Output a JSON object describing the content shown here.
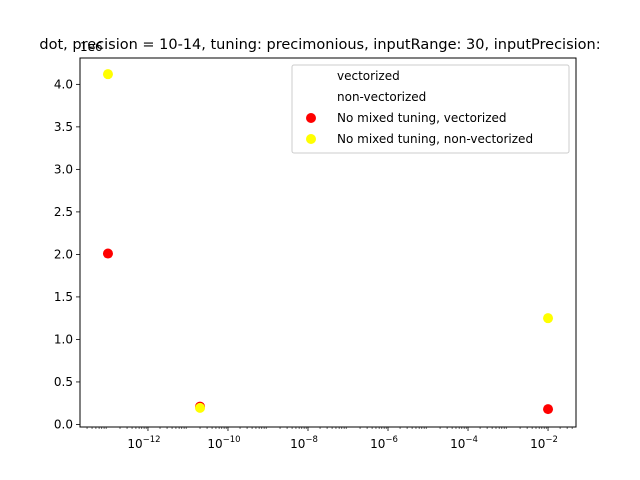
{
  "chart_data": {
    "type": "scatter",
    "title": "dot, precision = 10-14, tuning: precimonious, inputRange: 30, inputPrecision:",
    "xlabel": "",
    "ylabel": "",
    "x_scale": "log",
    "xlim": [
      2e-14,
      0.05
    ],
    "ylim": [
      -30000,
      4310000
    ],
    "y_offset_label": "1e6",
    "x_ticks": [
      {
        "value": 1e-12,
        "base": "10",
        "exp": "−12"
      },
      {
        "value": 1e-10,
        "base": "10",
        "exp": "−10"
      },
      {
        "value": 1e-08,
        "base": "10",
        "exp": "−8"
      },
      {
        "value": 1e-06,
        "base": "10",
        "exp": "−6"
      },
      {
        "value": 0.0001,
        "base": "10",
        "exp": "−4"
      },
      {
        "value": 0.01,
        "base": "10",
        "exp": "−2"
      }
    ],
    "y_ticks": [
      {
        "value": 0,
        "label": "0.0"
      },
      {
        "value": 500000,
        "label": "0.5"
      },
      {
        "value": 1000000,
        "label": "1.0"
      },
      {
        "value": 1500000,
        "label": "1.5"
      },
      {
        "value": 2000000,
        "label": "2.0"
      },
      {
        "value": 2500000,
        "label": "2.5"
      },
      {
        "value": 3000000,
        "label": "3.0"
      },
      {
        "value": 3500000,
        "label": "3.5"
      },
      {
        "value": 4000000,
        "label": "4.0"
      }
    ],
    "legend": {
      "placement": "upper-right",
      "entries": [
        {
          "label": "vectorized",
          "color": null
        },
        {
          "label": "non-vectorized",
          "color": null
        },
        {
          "label": "No mixed tuning, vectorized",
          "color": "#ff0000"
        },
        {
          "label": "No mixed tuning, non-vectorized",
          "color": "#ffff00"
        }
      ]
    },
    "series": [
      {
        "name": "No mixed tuning, vectorized",
        "color": "#ff0000",
        "points": [
          {
            "x": 1e-13,
            "y": 2010000
          },
          {
            "x": 2e-11,
            "y": 210000
          },
          {
            "x": 0.01,
            "y": 180000
          }
        ]
      },
      {
        "name": "No mixed tuning, non-vectorized",
        "color": "#ffff00",
        "points": [
          {
            "x": 1e-13,
            "y": 4120000
          },
          {
            "x": 2e-11,
            "y": 195000
          },
          {
            "x": 0.01,
            "y": 1250000
          }
        ]
      }
    ]
  }
}
